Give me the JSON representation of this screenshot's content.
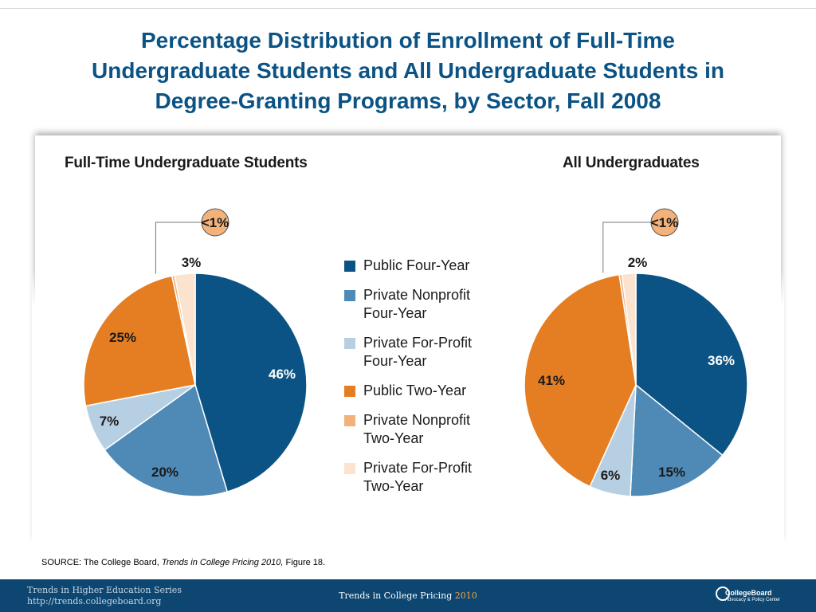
{
  "title": "Percentage Distribution of Enrollment of Full-Time Undergraduate Students and All Undergraduate Students in Degree-Granting Programs, by Sector, Fall 2008",
  "title_lines": [
    "Percentage Distribution of Enrollment of Full-Time",
    "Undergraduate Students and All Undergraduate Students in",
    "Degree-Granting Programs, by Sector, Fall 2008"
  ],
  "legend": [
    {
      "label_lines": [
        "Public Four-Year"
      ],
      "color": "#0b5384"
    },
    {
      "label_lines": [
        "Private Nonprofit",
        "Four-Year"
      ],
      "color": "#4f8ab6"
    },
    {
      "label_lines": [
        "Private For-Profit",
        "Four-Year"
      ],
      "color": "#b7cfe3"
    },
    {
      "label_lines": [
        "Public Two-Year"
      ],
      "color": "#e57e22"
    },
    {
      "label_lines": [
        "Private Nonprofit",
        "Two-Year"
      ],
      "color": "#f2b27a"
    },
    {
      "label_lines": [
        "Private For-Profit",
        "Two-Year"
      ],
      "color": "#fbe3cf"
    }
  ],
  "chart_data": [
    {
      "type": "pie",
      "title": "Full-Time Undergraduate Students",
      "categories": [
        "Public Four-Year",
        "Private Nonprofit Four-Year",
        "Private For-Profit Four-Year",
        "Public Two-Year",
        "Private Nonprofit Two-Year",
        "Private For-Profit Two-Year"
      ],
      "values": [
        46,
        20,
        7,
        25,
        0.4,
        3
      ],
      "labels": [
        "46%",
        "20%",
        "7%",
        "25%",
        "<1%",
        "3%"
      ]
    },
    {
      "type": "pie",
      "title": "All Undergraduates",
      "categories": [
        "Public Four-Year",
        "Private Nonprofit Four-Year",
        "Private For-Profit Four-Year",
        "Public Two-Year",
        "Private Nonprofit Two-Year",
        "Private For-Profit Two-Year"
      ],
      "values": [
        36,
        15,
        6,
        41,
        0.4,
        2
      ],
      "labels": [
        "36%",
        "15%",
        "6%",
        "41%",
        "<1%",
        "2%"
      ]
    }
  ],
  "source": {
    "prefix": "SOURCE: The College Board, ",
    "italic": "Trends in College Pricing 2010,",
    "suffix": " Figure 18."
  },
  "footer": {
    "series_line1": "Trends in Higher Education Series",
    "series_line2": "http://trends.collegeboard.org",
    "center_text": "Trends in College Pricing ",
    "center_year": "2010",
    "logo_line1": "CollegeBoard",
    "logo_line2": "Advocacy & Policy Center"
  }
}
